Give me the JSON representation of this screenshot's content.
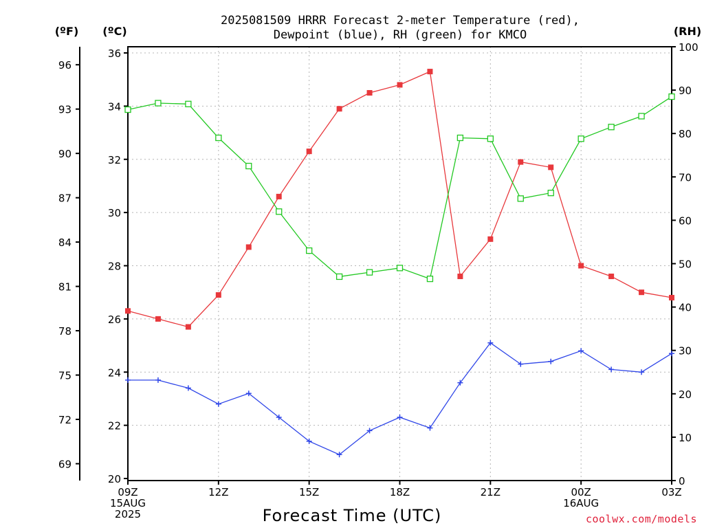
{
  "chart_data": {
    "type": "line",
    "title_lines": [
      "2025081509 HRRR Forecast 2-meter Temperature (red),",
      "Dewpoint (blue), RH (green) for KMCO"
    ],
    "units": {
      "fahrenheit": "(ºF)",
      "celsius": "(ºC)",
      "rh": "(RH)"
    },
    "xlabel": "Forecast Time (UTC)",
    "credit": "coolwx.com/models",
    "x": [
      "09Z",
      "10Z",
      "11Z",
      "12Z",
      "13Z",
      "14Z",
      "15Z",
      "16Z",
      "17Z",
      "18Z",
      "19Z",
      "20Z",
      "21Z",
      "22Z",
      "23Z",
      "00Z",
      "01Z",
      "02Z",
      "03Z"
    ],
    "x_tick_labels": [
      {
        "index": 0,
        "lines": [
          "09Z",
          "15AUG",
          "2025"
        ]
      },
      {
        "index": 3,
        "lines": [
          "12Z"
        ]
      },
      {
        "index": 6,
        "lines": [
          "15Z"
        ]
      },
      {
        "index": 9,
        "lines": [
          "18Z"
        ]
      },
      {
        "index": 12,
        "lines": [
          "21Z"
        ]
      },
      {
        "index": 15,
        "lines": [
          "00Z",
          "16AUG"
        ]
      },
      {
        "index": 18,
        "lines": [
          "03Z"
        ]
      }
    ],
    "celsius_axis": {
      "range": [
        20,
        36.3
      ],
      "ticks": [
        20,
        22,
        24,
        26,
        28,
        30,
        32,
        34,
        36
      ]
    },
    "fahrenheit_axis": {
      "ticks": [
        69,
        72,
        75,
        78,
        81,
        84,
        87,
        90,
        93,
        96
      ]
    },
    "rh_axis": {
      "range": [
        0,
        100
      ],
      "ticks": [
        0,
        10,
        20,
        30,
        40,
        50,
        60,
        70,
        80,
        90,
        100
      ]
    },
    "grid": true,
    "series": [
      {
        "key": "temperature",
        "axis": "celsius",
        "color": "#e8383c",
        "marker": "filled-square",
        "values": [
          26.3,
          26.0,
          25.7,
          26.9,
          28.7,
          30.6,
          32.3,
          33.9,
          34.5,
          34.8,
          35.3,
          27.6,
          29.0,
          31.9,
          31.7,
          28.0,
          27.6,
          27.0,
          26.8
        ]
      },
      {
        "key": "dewpoint",
        "axis": "celsius",
        "color": "#2f46e8",
        "marker": "plus",
        "values": [
          23.7,
          23.7,
          23.4,
          22.8,
          23.2,
          22.3,
          21.4,
          20.9,
          21.8,
          22.3,
          21.9,
          23.6,
          25.1,
          24.3,
          24.4,
          24.8,
          24.1,
          24.0,
          24.7
        ]
      },
      {
        "key": "rh",
        "axis": "rh",
        "color": "#21c821",
        "marker": "open-square",
        "values": [
          85.5,
          87.0,
          86.8,
          79.0,
          72.5,
          62.0,
          53.0,
          47.0,
          48.0,
          49.0,
          46.5,
          79.0,
          78.8,
          65.0,
          66.3,
          78.8,
          81.5,
          84.0,
          88.5
        ]
      }
    ]
  }
}
